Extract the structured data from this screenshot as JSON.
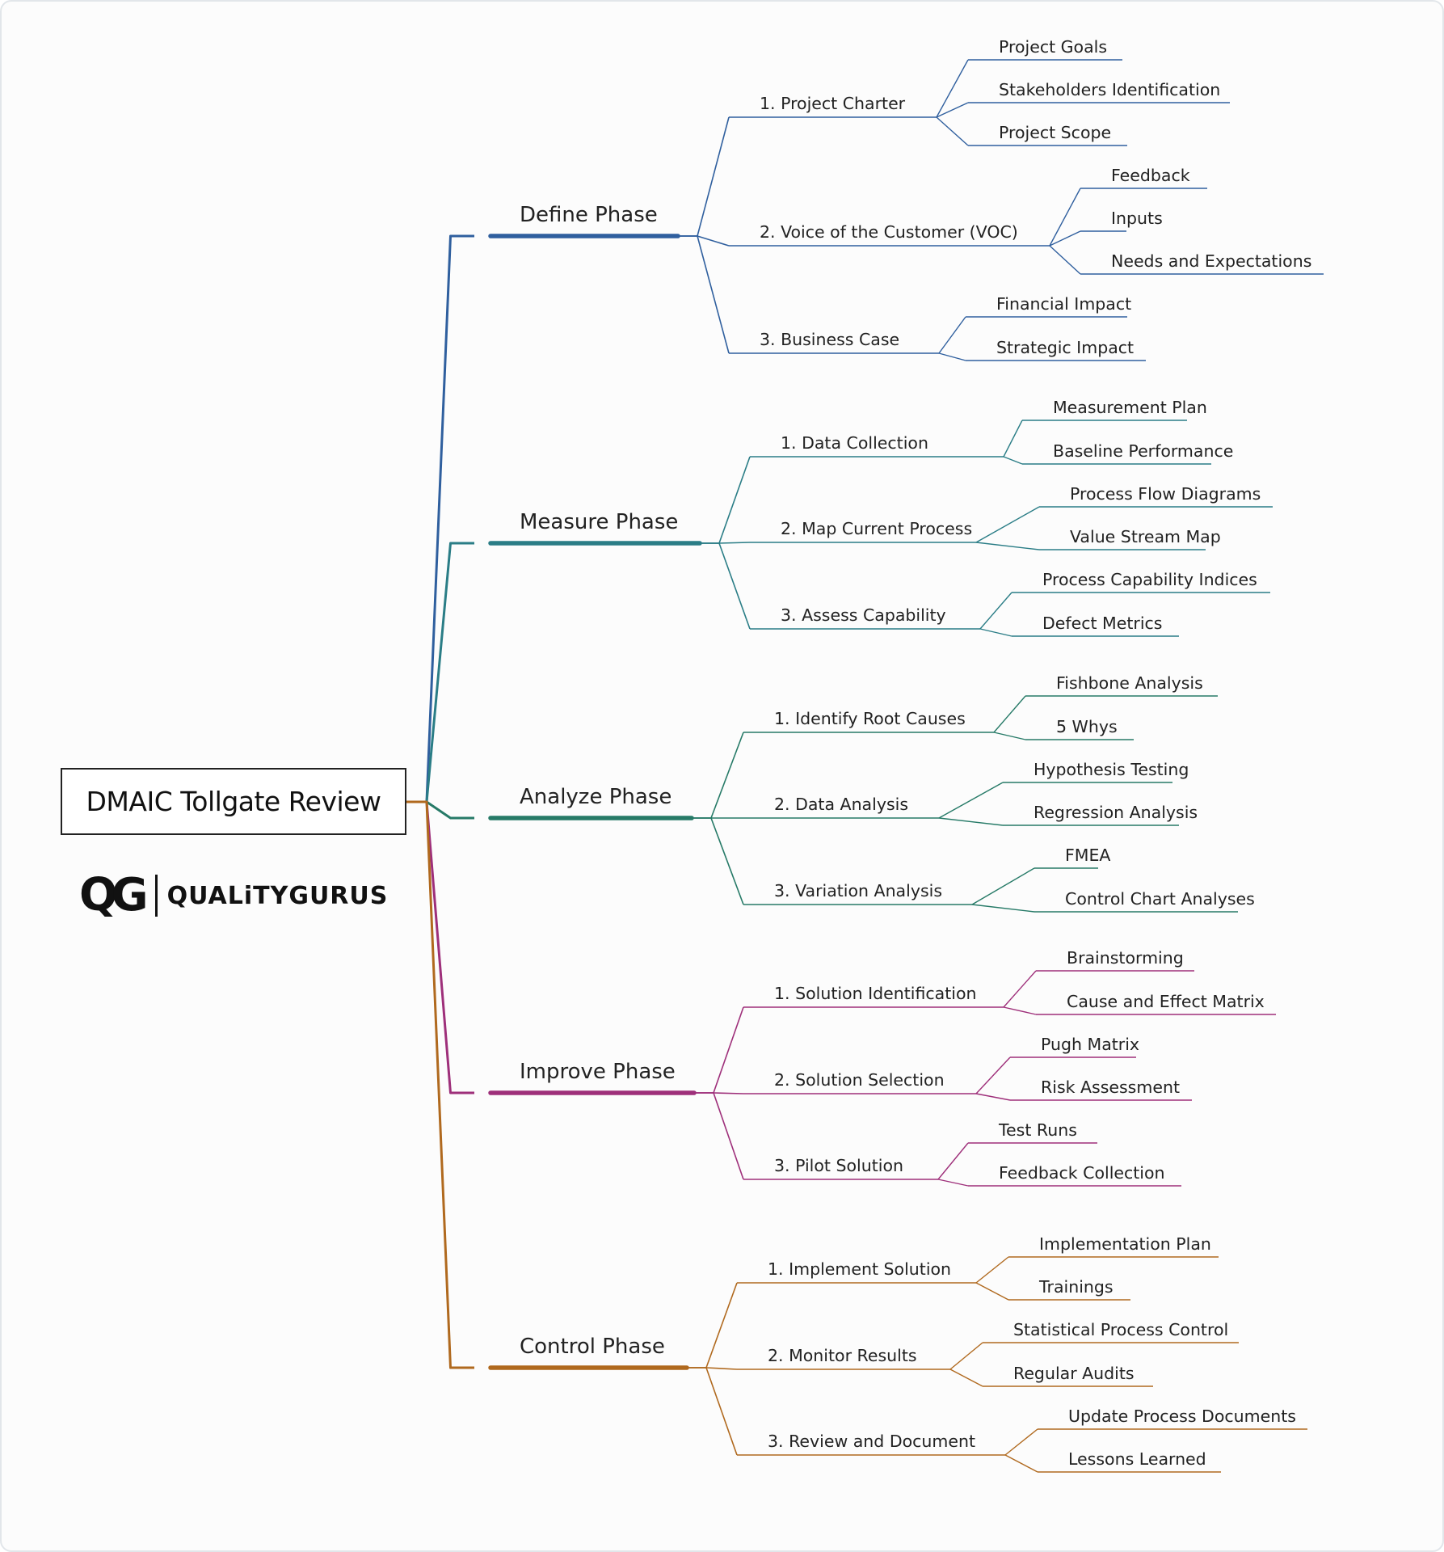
{
  "root": {
    "title": "DMAIC Tollgate Review"
  },
  "logo": {
    "mark": "QG",
    "text": "QUALiTYGURUS"
  },
  "phases": [
    {
      "label": "Define Phase",
      "color": "#2f5f9e",
      "children": [
        {
          "label": "1. Project Charter",
          "leaves": [
            "Project Goals",
            "Stakeholders Identification",
            "Project Scope"
          ]
        },
        {
          "label": "2. Voice of the Customer (VOC)",
          "leaves": [
            "Feedback",
            "Inputs",
            "Needs and Expectations"
          ]
        },
        {
          "label": "3. Business Case",
          "leaves": [
            "Financial Impact",
            "Strategic Impact"
          ]
        }
      ]
    },
    {
      "label": "Measure Phase",
      "color": "#2a7d86",
      "children": [
        {
          "label": "1. Data Collection",
          "leaves": [
            "Measurement Plan",
            "Baseline Performance"
          ]
        },
        {
          "label": "2. Map Current Process",
          "leaves": [
            "Process Flow Diagrams",
            "Value Stream Map"
          ]
        },
        {
          "label": "3. Assess Capability",
          "leaves": [
            "Process Capability Indices",
            "Defect Metrics"
          ]
        }
      ]
    },
    {
      "label": "Analyze Phase",
      "color": "#267a67",
      "children": [
        {
          "label": "1. Identify Root Causes",
          "leaves": [
            "Fishbone Analysis",
            "5 Whys"
          ]
        },
        {
          "label": "2. Data Analysis",
          "leaves": [
            "Hypothesis Testing",
            "Regression Analysis"
          ]
        },
        {
          "label": "3. Variation Analysis",
          "leaves": [
            "FMEA",
            "Control Chart Analyses"
          ]
        }
      ]
    },
    {
      "label": "Improve Phase",
      "color": "#9e2f7a",
      "children": [
        {
          "label": "1. Solution Identification",
          "leaves": [
            "Brainstorming",
            "Cause and Effect Matrix"
          ]
        },
        {
          "label": "2. Solution Selection",
          "leaves": [
            "Pugh Matrix",
            "Risk Assessment"
          ]
        },
        {
          "label": "3. Pilot Solution",
          "leaves": [
            "Test Runs",
            "Feedback Collection"
          ]
        }
      ]
    },
    {
      "label": "Control Phase",
      "color": "#b0691e",
      "children": [
        {
          "label": "1. Implement Solution",
          "leaves": [
            "Implementation Plan",
            "Trainings"
          ]
        },
        {
          "label": "2. Monitor Results",
          "leaves": [
            "Statistical Process Control",
            "Regular Audits"
          ]
        },
        {
          "label": "3. Review and Document",
          "leaves": [
            "Update Process Documents",
            "Lessons Learned"
          ]
        }
      ]
    }
  ]
}
